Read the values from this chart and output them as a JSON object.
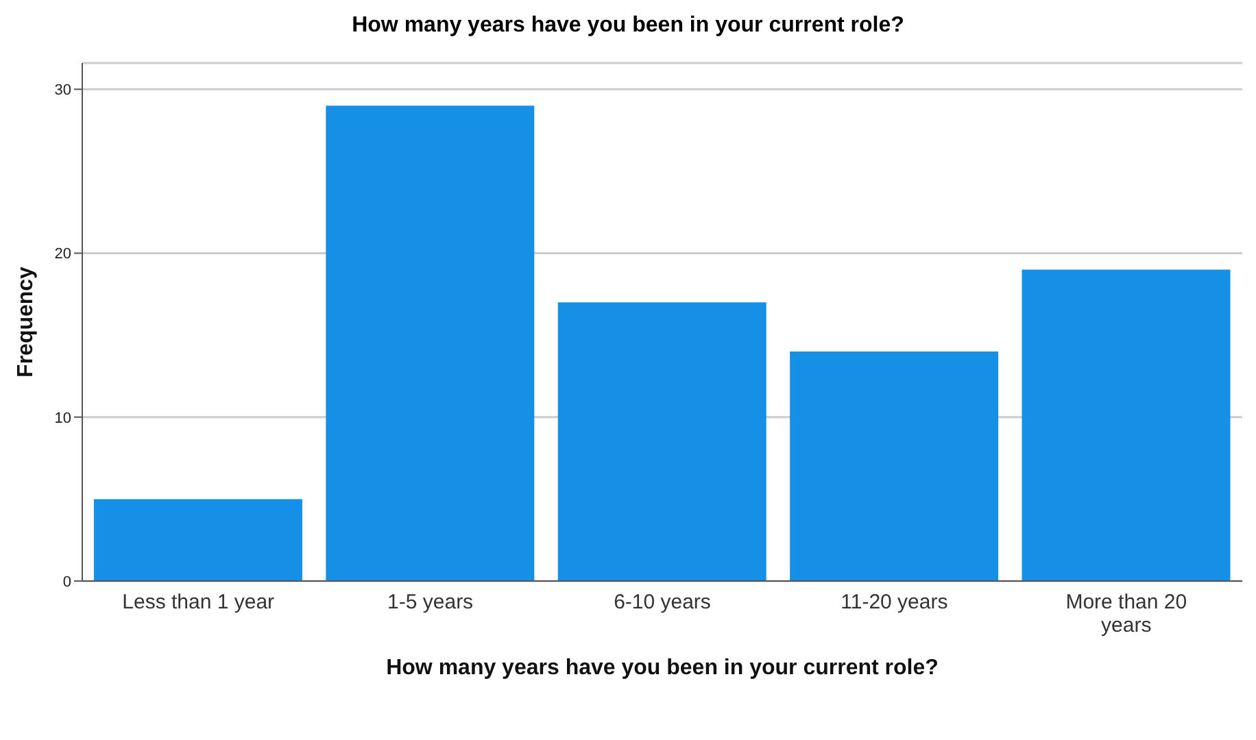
{
  "chart_data": {
    "type": "bar",
    "title": "How many years have you been in your current role?",
    "xlabel": "How many years have you been in your current role?",
    "ylabel": "Frequency",
    "categories": [
      "Less than 1 year",
      "1-5 years",
      "6-10 years",
      "11-20 years",
      "More than 20 years"
    ],
    "values": [
      5,
      29,
      17,
      14,
      19
    ],
    "color": "#1690e6",
    "ylim": [
      0,
      31.6
    ],
    "yticks": [
      0,
      10,
      20,
      30
    ],
    "grid": "y"
  }
}
